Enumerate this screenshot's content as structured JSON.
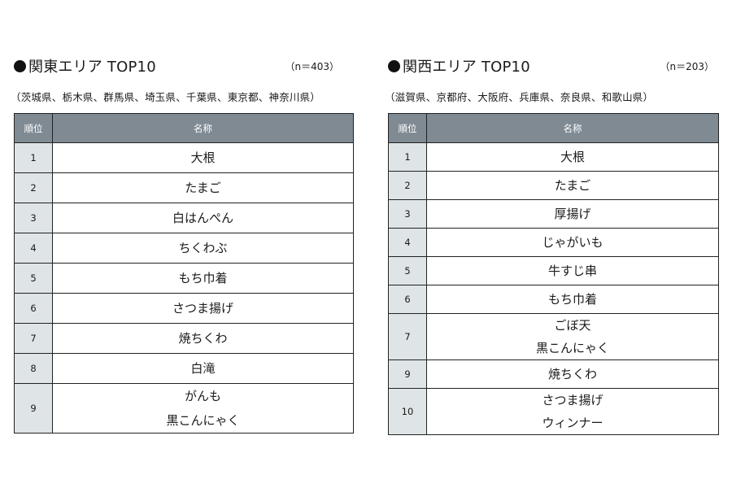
{
  "kanto": {
    "title": "関東エリア TOP10",
    "sample": "（n＝403）",
    "prefectures": "（茨城県、栃木県、群馬県、埼玉県、千葉県、東京都、神奈川県）",
    "header_rank": "順位",
    "header_name": "名称",
    "rows": [
      {
        "rank": "1",
        "names": [
          "大根"
        ]
      },
      {
        "rank": "2",
        "names": [
          "たまご"
        ]
      },
      {
        "rank": "3",
        "names": [
          "白はんぺん"
        ]
      },
      {
        "rank": "4",
        "names": [
          "ちくわぶ"
        ]
      },
      {
        "rank": "5",
        "names": [
          "もち巾着"
        ]
      },
      {
        "rank": "6",
        "names": [
          "さつま揚げ"
        ]
      },
      {
        "rank": "7",
        "names": [
          "焼ちくわ"
        ]
      },
      {
        "rank": "8",
        "names": [
          "白滝"
        ]
      },
      {
        "rank": "9",
        "names": [
          "がんも",
          "黒こんにゃく"
        ]
      }
    ]
  },
  "kansai": {
    "title": "関西エリア TOP10",
    "sample": "（n＝203）",
    "prefectures": "（滋賀県、京都府、大阪府、兵庫県、奈良県、和歌山県）",
    "header_rank": "順位",
    "header_name": "名称",
    "rows": [
      {
        "rank": "1",
        "names": [
          "大根"
        ]
      },
      {
        "rank": "2",
        "names": [
          "たまご"
        ]
      },
      {
        "rank": "3",
        "names": [
          "厚揚げ"
        ]
      },
      {
        "rank": "4",
        "names": [
          "じゃがいも"
        ]
      },
      {
        "rank": "5",
        "names": [
          "牛すじ串"
        ]
      },
      {
        "rank": "6",
        "names": [
          "もち巾着"
        ]
      },
      {
        "rank": "7",
        "names": [
          "ごぼ天",
          "黒こんにゃく"
        ]
      },
      {
        "rank": "9",
        "names": [
          "焼ちくわ"
        ]
      },
      {
        "rank": "10",
        "names": [
          "さつま揚げ",
          "ウィンナー"
        ]
      }
    ]
  }
}
